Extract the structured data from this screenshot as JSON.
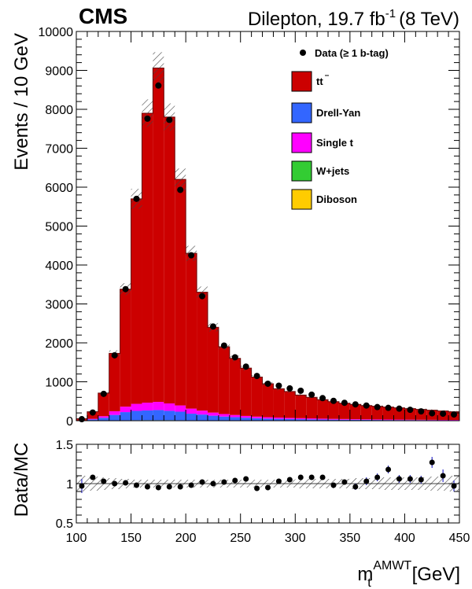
{
  "header": {
    "experiment": "CMS",
    "channel_lumi": "Dilepton, 19.7 fb",
    "lumi_exp": "-1",
    "energy": "(8 TeV)"
  },
  "chart_data": [
    {
      "type": "bar",
      "subtype": "stacked-histogram",
      "xlabel_main": "m",
      "xlabel_sub": "t",
      "xlabel_sup": "AMWT",
      "xlabel_unit": "[GeV]",
      "ylabel": "Events / 10 GeV",
      "xlim": [
        100,
        450
      ],
      "ylim": [
        0,
        10000
      ],
      "xticks": [
        100,
        150,
        200,
        250,
        300,
        350,
        400,
        450
      ],
      "yticks": [
        0,
        1000,
        2000,
        3000,
        4000,
        5000,
        6000,
        7000,
        8000,
        9000,
        10000
      ],
      "bin_edges": [
        100,
        110,
        120,
        130,
        140,
        150,
        160,
        170,
        180,
        190,
        200,
        210,
        220,
        230,
        240,
        250,
        260,
        270,
        280,
        290,
        300,
        310,
        320,
        330,
        340,
        350,
        360,
        370,
        380,
        390,
        400,
        410,
        420,
        430,
        440,
        450
      ],
      "series": [
        {
          "name": "Diboson",
          "color": "#ffcc00",
          "values": [
            0,
            2,
            3,
            5,
            6,
            7,
            8,
            8,
            8,
            7,
            6,
            5,
            5,
            4,
            4,
            3,
            3,
            3,
            2,
            2,
            2,
            2,
            2,
            1,
            1,
            1,
            1,
            1,
            1,
            1,
            1,
            1,
            1,
            1,
            1
          ]
        },
        {
          "name": "W+jets",
          "color": "#33cc33",
          "values": [
            0,
            2,
            3,
            4,
            5,
            6,
            6,
            6,
            6,
            5,
            5,
            4,
            4,
            3,
            3,
            3,
            2,
            2,
            2,
            2,
            2,
            1,
            1,
            1,
            1,
            1,
            1,
            1,
            1,
            1,
            1,
            1,
            1,
            1,
            1
          ]
        },
        {
          "name": "Drell-Yan",
          "color": "#3366ff",
          "values": [
            6,
            30,
            70,
            140,
            210,
            240,
            250,
            260,
            240,
            220,
            170,
            150,
            120,
            100,
            85,
            72,
            60,
            50,
            45,
            40,
            35,
            32,
            28,
            25,
            23,
            21,
            19,
            17,
            16,
            15,
            14,
            13,
            12,
            11,
            10
          ]
        },
        {
          "name": "Single t",
          "color": "#ff00ff",
          "values": [
            2,
            15,
            40,
            95,
            140,
            180,
            200,
            210,
            190,
            160,
            130,
            100,
            80,
            65,
            55,
            45,
            40,
            35,
            32,
            28,
            26,
            24,
            22,
            20,
            18,
            16,
            15,
            14,
            13,
            12,
            11,
            10,
            9,
            8,
            8
          ]
        },
        {
          "name": "t̄t",
          "legend_main": "t",
          "legend_bar": "t",
          "color": "#cc0000",
          "values": [
            42,
            181,
            594,
            1486,
            3019,
            5267,
            7436,
            8576,
            7356,
            5808,
            3989,
            3041,
            2191,
            1728,
            1453,
            1227,
            1015,
            860,
            739,
            678,
            595,
            541,
            487,
            443,
            407,
            381,
            354,
            337,
            319,
            301,
            283,
            265,
            247,
            229,
            210
          ]
        }
      ],
      "mc_total": [
        50,
        230,
        710,
        1730,
        3380,
        5700,
        7900,
        9060,
        7800,
        6200,
        4300,
        3300,
        2400,
        1900,
        1600,
        1350,
        1120,
        950,
        820,
        750,
        660,
        600,
        540,
        490,
        450,
        420,
        390,
        370,
        350,
        330,
        310,
        290,
        270,
        250,
        230
      ],
      "data_points": [
        40,
        210,
        690,
        1680,
        3380,
        5700,
        7760,
        8610,
        7730,
        5930,
        4250,
        3200,
        2420,
        1930,
        1630,
        1390,
        1150,
        950,
        900,
        830,
        770,
        670,
        580,
        510,
        460,
        420,
        390,
        350,
        330,
        310,
        280,
        240,
        190,
        180,
        160
      ],
      "legend": {
        "data_label": "Data (≥ 1 b-tag)",
        "placement": "top-right"
      }
    },
    {
      "type": "scatter",
      "subtype": "ratio",
      "ylabel": "Data/MC",
      "xlim": [
        100,
        450
      ],
      "ylim": [
        0.5,
        1.5
      ],
      "xticks": [
        100,
        150,
        200,
        250,
        300,
        350,
        400,
        450
      ],
      "yticks": [
        0.5,
        1,
        1.5
      ],
      "x": [
        105,
        115,
        125,
        135,
        145,
        155,
        165,
        175,
        185,
        195,
        205,
        215,
        225,
        235,
        245,
        255,
        265,
        275,
        285,
        295,
        305,
        315,
        325,
        335,
        345,
        355,
        365,
        375,
        385,
        395,
        405,
        415,
        425,
        435,
        445
      ],
      "values": [
        0.97,
        1.08,
        1.03,
        1.0,
        1.01,
        0.98,
        0.96,
        0.95,
        0.96,
        0.96,
        0.98,
        1.02,
        1.0,
        1.02,
        1.04,
        1.06,
        0.94,
        0.95,
        1.03,
        1.05,
        1.08,
        1.08,
        1.08,
        0.98,
        1.02,
        0.96,
        1.03,
        1.08,
        1.18,
        1.06,
        1.06,
        1.05,
        1.27,
        1.1,
        0.97
      ],
      "errors": [
        0.09,
        0.03,
        0.02,
        0.01,
        0.01,
        0.01,
        0.01,
        0.01,
        0.01,
        0.01,
        0.01,
        0.01,
        0.01,
        0.02,
        0.02,
        0.02,
        0.02,
        0.02,
        0.03,
        0.03,
        0.03,
        0.03,
        0.03,
        0.03,
        0.03,
        0.04,
        0.05,
        0.05,
        0.05,
        0.05,
        0.05,
        0.05,
        0.07,
        0.08,
        0.07
      ],
      "band_halfwidth": [
        0.1,
        0.09,
        0.08,
        0.07,
        0.06,
        0.05,
        0.05,
        0.05,
        0.05,
        0.05,
        0.05,
        0.05,
        0.05,
        0.05,
        0.05,
        0.05,
        0.05,
        0.05,
        0.05,
        0.05,
        0.06,
        0.06,
        0.06,
        0.06,
        0.06,
        0.07,
        0.07,
        0.07,
        0.08,
        0.08,
        0.08,
        0.08,
        0.09,
        0.09,
        0.1
      ]
    }
  ]
}
